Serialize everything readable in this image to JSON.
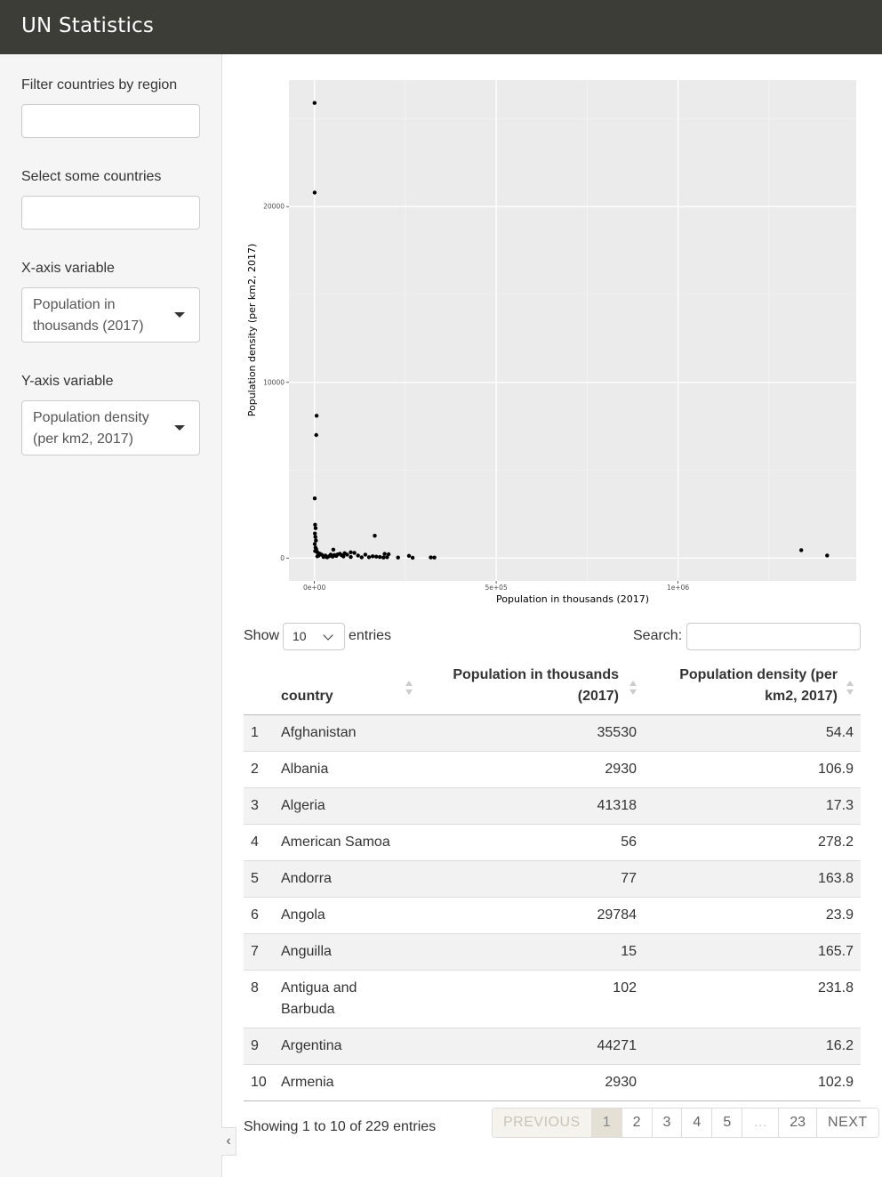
{
  "app": {
    "title": "UN Statistics"
  },
  "sidebar": {
    "region_filter": {
      "label": "Filter countries by region",
      "value": ""
    },
    "country_select": {
      "label": "Select some countries",
      "value": ""
    },
    "x_var": {
      "label": "X-axis variable",
      "selected": "Population in thousands (2017)"
    },
    "y_var": {
      "label": "Y-axis variable",
      "selected": "Population density (per km2, 2017)"
    }
  },
  "chart_data": {
    "type": "scatter",
    "xlabel": "Population in thousands (2017)",
    "ylabel": "Population density (per km2, 2017)",
    "xlim": [
      -70000,
      1490000
    ],
    "ylim": [
      -1300,
      27200
    ],
    "x_ticks": [
      0,
      500000,
      1000000
    ],
    "x_tick_labels": [
      "0e+00",
      "5e+05",
      "1e+06"
    ],
    "y_ticks": [
      0,
      10000,
      20000
    ],
    "y_tick_labels": [
      "0",
      "10000",
      "20000"
    ],
    "grid": true,
    "points": [
      [
        300,
        25900
      ],
      [
        600,
        20800
      ],
      [
        6000,
        8100
      ],
      [
        5000,
        7000
      ],
      [
        1000,
        3400
      ],
      [
        2000,
        1900
      ],
      [
        3000,
        1700
      ],
      [
        1500,
        1400
      ],
      [
        2500,
        1200
      ],
      [
        4000,
        1000
      ],
      [
        1000,
        800
      ],
      [
        3000,
        600
      ],
      [
        5000,
        500
      ],
      [
        2000,
        400
      ],
      [
        7000,
        350
      ],
      [
        10000,
        300
      ],
      [
        15000,
        250
      ],
      [
        20000,
        200
      ],
      [
        30000,
        150
      ],
      [
        40000,
        100
      ],
      [
        50000,
        80
      ],
      [
        60000,
        120
      ],
      [
        80000,
        90
      ],
      [
        100000,
        60
      ],
      [
        130000,
        40
      ],
      [
        160000,
        100
      ],
      [
        200000,
        50
      ],
      [
        230000,
        30
      ],
      [
        270000,
        20
      ],
      [
        330000,
        30
      ],
      [
        8000,
        100
      ],
      [
        12000,
        150
      ],
      [
        25000,
        60
      ],
      [
        35000,
        40
      ],
      [
        45000,
        200
      ],
      [
        55000,
        180
      ],
      [
        70000,
        250
      ],
      [
        90000,
        200
      ],
      [
        110000,
        300
      ],
      [
        120000,
        150
      ],
      [
        140000,
        200
      ],
      [
        150000,
        50
      ],
      [
        170000,
        80
      ],
      [
        180000,
        60
      ],
      [
        190000,
        30
      ],
      [
        52000,
        480
      ],
      [
        166000,
        1270
      ],
      [
        260000,
        130
      ],
      [
        320000,
        35
      ],
      [
        204000,
        220
      ],
      [
        193000,
        240
      ],
      [
        100000,
        330
      ],
      [
        83000,
        280
      ],
      [
        64000,
        210
      ],
      [
        75000,
        160
      ],
      [
        1339000,
        450
      ],
      [
        1410000,
        148
      ]
    ]
  },
  "table": {
    "length_label_before": "Show",
    "length_value": "10",
    "length_label_after": "entries",
    "search_label": "Search:",
    "search_value": "",
    "columns": [
      "",
      "country",
      "Population in thousands (2017)",
      "Population density (per km2, 2017)"
    ],
    "rows": [
      [
        "1",
        "Afghanistan",
        "35530",
        "54.4"
      ],
      [
        "2",
        "Albania",
        "2930",
        "106.9"
      ],
      [
        "3",
        "Algeria",
        "41318",
        "17.3"
      ],
      [
        "4",
        "American Samoa",
        "56",
        "278.2"
      ],
      [
        "5",
        "Andorra",
        "77",
        "163.8"
      ],
      [
        "6",
        "Angola",
        "29784",
        "23.9"
      ],
      [
        "7",
        "Anguilla",
        "15",
        "165.7"
      ],
      [
        "8",
        "Antigua and Barbuda",
        "102",
        "231.8"
      ],
      [
        "9",
        "Argentina",
        "44271",
        "16.2"
      ],
      [
        "10",
        "Armenia",
        "2930",
        "102.9"
      ]
    ],
    "info": "Showing 1 to 10 of 229 entries",
    "pagination": {
      "previous": "PREVIOUS",
      "pages": [
        "1",
        "2",
        "3",
        "4",
        "5",
        "…",
        "23"
      ],
      "current": "1",
      "next": "NEXT"
    }
  },
  "colors": {
    "topbar": "#3d3d38",
    "sidebar": "#f5f5f5",
    "plot_panel": "#ebebeb",
    "point": "#000000"
  }
}
